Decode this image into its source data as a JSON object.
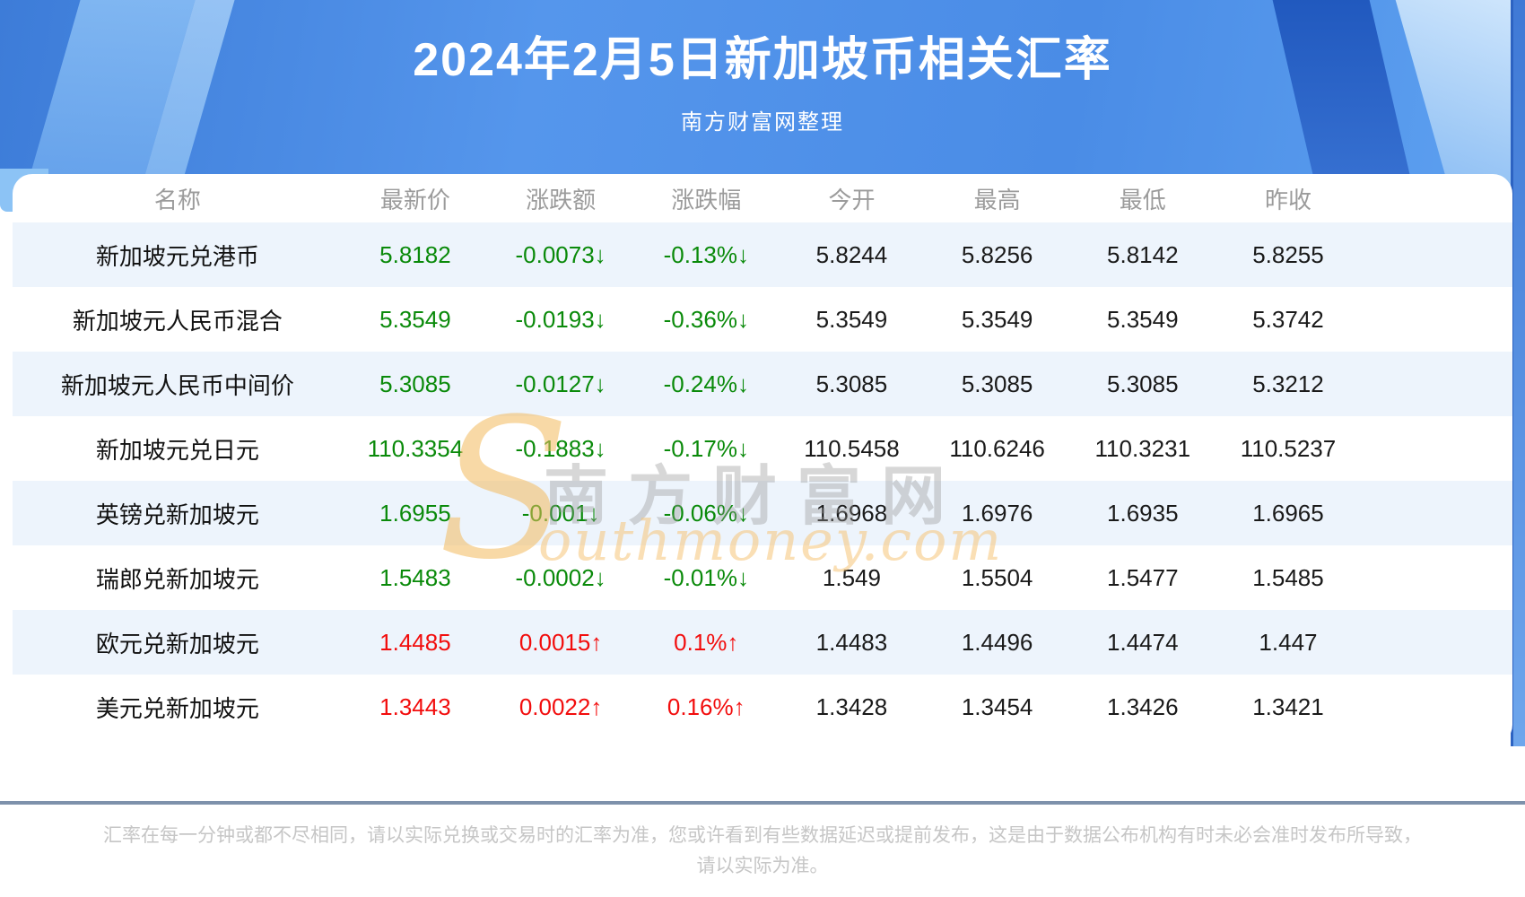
{
  "header": {
    "title": "2024年2月5日新加坡币相关汇率",
    "subtitle": "南方财富网整理"
  },
  "chart_data": {
    "type": "table",
    "title": "2024年2月5日新加坡币相关汇率",
    "columns": [
      "名称",
      "最新价",
      "涨跌额",
      "涨跌幅",
      "今开",
      "最高",
      "最低",
      "昨收"
    ],
    "rows": [
      {
        "cells": [
          "新加坡元兑港币",
          "5.8182",
          "-0.0073↓",
          "-0.13%↓",
          "5.8244",
          "5.8256",
          "5.8142",
          "5.8255"
        ],
        "trend": "down"
      },
      {
        "cells": [
          "新加坡元人民币混合",
          "5.3549",
          "-0.0193↓",
          "-0.36%↓",
          "5.3549",
          "5.3549",
          "5.3549",
          "5.3742"
        ],
        "trend": "down"
      },
      {
        "cells": [
          "新加坡元人民币中间价",
          "5.3085",
          "-0.0127↓",
          "-0.24%↓",
          "5.3085",
          "5.3085",
          "5.3085",
          "5.3212"
        ],
        "trend": "down"
      },
      {
        "cells": [
          "新加坡元兑日元",
          "110.3354",
          "-0.1883↓",
          "-0.17%↓",
          "110.5458",
          "110.6246",
          "110.3231",
          "110.5237"
        ],
        "trend": "down"
      },
      {
        "cells": [
          "英镑兑新加坡元",
          "1.6955",
          "-0.001↓",
          "-0.06%↓",
          "1.6968",
          "1.6976",
          "1.6935",
          "1.6965"
        ],
        "trend": "down"
      },
      {
        "cells": [
          "瑞郎兑新加坡元",
          "1.5483",
          "-0.0002↓",
          "-0.01%↓",
          "1.549",
          "1.5504",
          "1.5477",
          "1.5485"
        ],
        "trend": "down"
      },
      {
        "cells": [
          "欧元兑新加坡元",
          "1.4485",
          "0.0015↑",
          "0.1%↑",
          "1.4483",
          "1.4496",
          "1.4474",
          "1.447"
        ],
        "trend": "up"
      },
      {
        "cells": [
          "美元兑新加坡元",
          "1.3443",
          "0.0022↑",
          "0.16%↑",
          "1.3428",
          "1.3454",
          "1.3426",
          "1.3421"
        ],
        "trend": "up"
      }
    ]
  },
  "watermark": {
    "brand_initial": "S",
    "brand_cn": "南方财富网",
    "brand_en_suffix": "outhmoney.com"
  },
  "footer": {
    "line1": "汇率在每一分钟或都不尽相同，请以实际兑换或交易时的汇率为准，您或许看到有些数据延迟或提前发布，这是由于数据公布机构有时未必会准时发布所导致，",
    "line2": "请以实际为准。"
  },
  "colors": {
    "accent_blue": "#4a8ce6",
    "up_red": "#f20d0d",
    "down_green": "#0a8a0a",
    "row_stripe": "#edf4fc",
    "divider": "#7e91ab"
  }
}
